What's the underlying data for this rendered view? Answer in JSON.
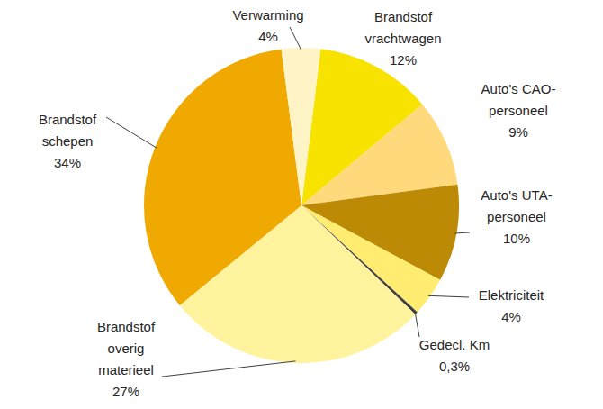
{
  "chart_data": {
    "type": "pie",
    "categories": [
      "Brandstof vrachtwagen",
      "Auto's CAO-personeel",
      "Auto's UTA-personeel",
      "Elektriciteit",
      "Gedecl. Km",
      "Brandstof overig materieel",
      "Brandstof schepen",
      "Verwarming"
    ],
    "values": [
      12,
      9,
      10,
      4,
      0.3,
      27,
      34,
      4
    ],
    "value_labels": [
      "12%",
      "9%",
      "10%",
      "4%",
      "0,3%",
      "27%",
      "34%",
      "4%"
    ],
    "colors": [
      "#f7e200",
      "#ffd97c",
      "#bd8a06",
      "#ffec70",
      "#404040",
      "#fff39e",
      "#f0a900",
      "#fff4c6"
    ],
    "data_labels": true
  }
}
